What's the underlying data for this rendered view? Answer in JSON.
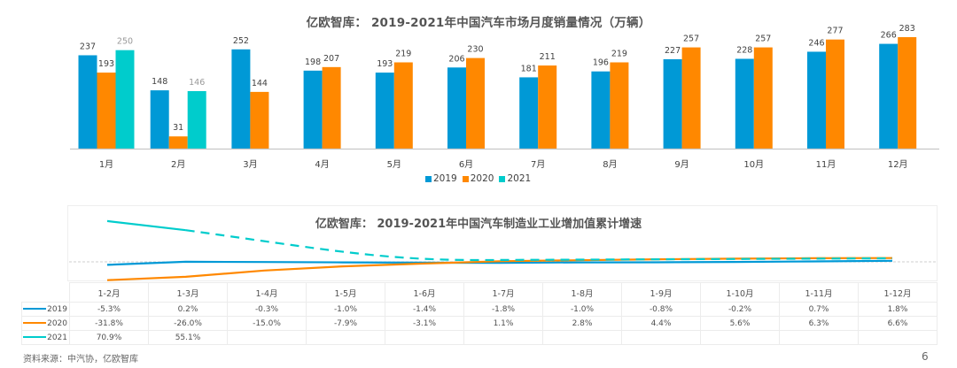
{
  "colors": {
    "2019": "#0099d6",
    "2020": "#ff8800",
    "2021": "#00cccc"
  },
  "legend": [
    {
      "name": "2019",
      "color": "#0099d6"
    },
    {
      "name": "2020",
      "color": "#ff8800"
    },
    {
      "name": "2021",
      "color": "#00cccc"
    }
  ],
  "source": "资料来源：中汽协，亿欧智库",
  "page_number": "6",
  "chart_data": [
    {
      "type": "bar",
      "title": "亿欧智库： 2019-2021年中国汽车市场月度销量情况（万辆）",
      "xlabel": "",
      "ylabel": "",
      "unit": "万辆",
      "grid": false,
      "legend_position": "bottom",
      "categories": [
        "1月",
        "2月",
        "3月",
        "4月",
        "5月",
        "6月",
        "7月",
        "8月",
        "9月",
        "10月",
        "11月",
        "12月"
      ],
      "series": [
        {
          "name": "2019",
          "values": [
            237,
            148,
            252,
            198,
            193,
            206,
            181,
            196,
            227,
            228,
            246,
            266
          ]
        },
        {
          "name": "2020",
          "values": [
            193,
            31,
            144,
            207,
            219,
            230,
            211,
            219,
            257,
            257,
            277,
            283
          ]
        },
        {
          "name": "2021",
          "values": [
            250,
            146,
            null,
            null,
            null,
            null,
            null,
            null,
            null,
            null,
            null,
            null
          ]
        }
      ],
      "ylim": [
        0,
        283
      ]
    },
    {
      "type": "line",
      "title": "亿欧智库： 2019-2021年中国汽车制造业工业增加值累计增速",
      "xlabel": "",
      "ylabel": "",
      "grid": false,
      "legend_position": "table-left",
      "categories": [
        "1-2月",
        "1-3月",
        "1-4月",
        "1-5月",
        "1-6月",
        "1-7月",
        "1-8月",
        "1-9月",
        "1-10月",
        "1-11月",
        "1-12月"
      ],
      "series": [
        {
          "name": "2019",
          "values": [
            -5.3,
            0.2,
            -0.3,
            -1.0,
            -1.4,
            -1.8,
            -1.0,
            -0.8,
            -0.2,
            0.7,
            1.8
          ],
          "labels": [
            "-5.3%",
            "0.2%",
            "-0.3%",
            "-1.0%",
            "-1.4%",
            "-1.8%",
            "-1.0%",
            "-0.8%",
            "-0.2%",
            "0.7%",
            "1.8%"
          ]
        },
        {
          "name": "2020",
          "values": [
            -31.8,
            -26.0,
            -15.0,
            -7.9,
            -3.1,
            1.1,
            2.8,
            4.4,
            5.6,
            6.3,
            6.6
          ],
          "labels": [
            "-31.8%",
            "-26.0%",
            "-15.0%",
            "-7.9%",
            "-3.1%",
            "1.1%",
            "2.8%",
            "4.4%",
            "5.6%",
            "6.3%",
            "6.6%"
          ]
        },
        {
          "name": "2021",
          "values": [
            70.9,
            55.1,
            null,
            null,
            null,
            null,
            null,
            null,
            null,
            null,
            null
          ],
          "labels": [
            "70.9%",
            "55.1%",
            "",
            "",
            "",
            "",
            "",
            "",
            "",
            "",
            ""
          ],
          "trend": "dashed continuation converging toward zero line"
        }
      ],
      "ylim": [
        -35,
        75
      ],
      "reference_line": 0
    }
  ]
}
